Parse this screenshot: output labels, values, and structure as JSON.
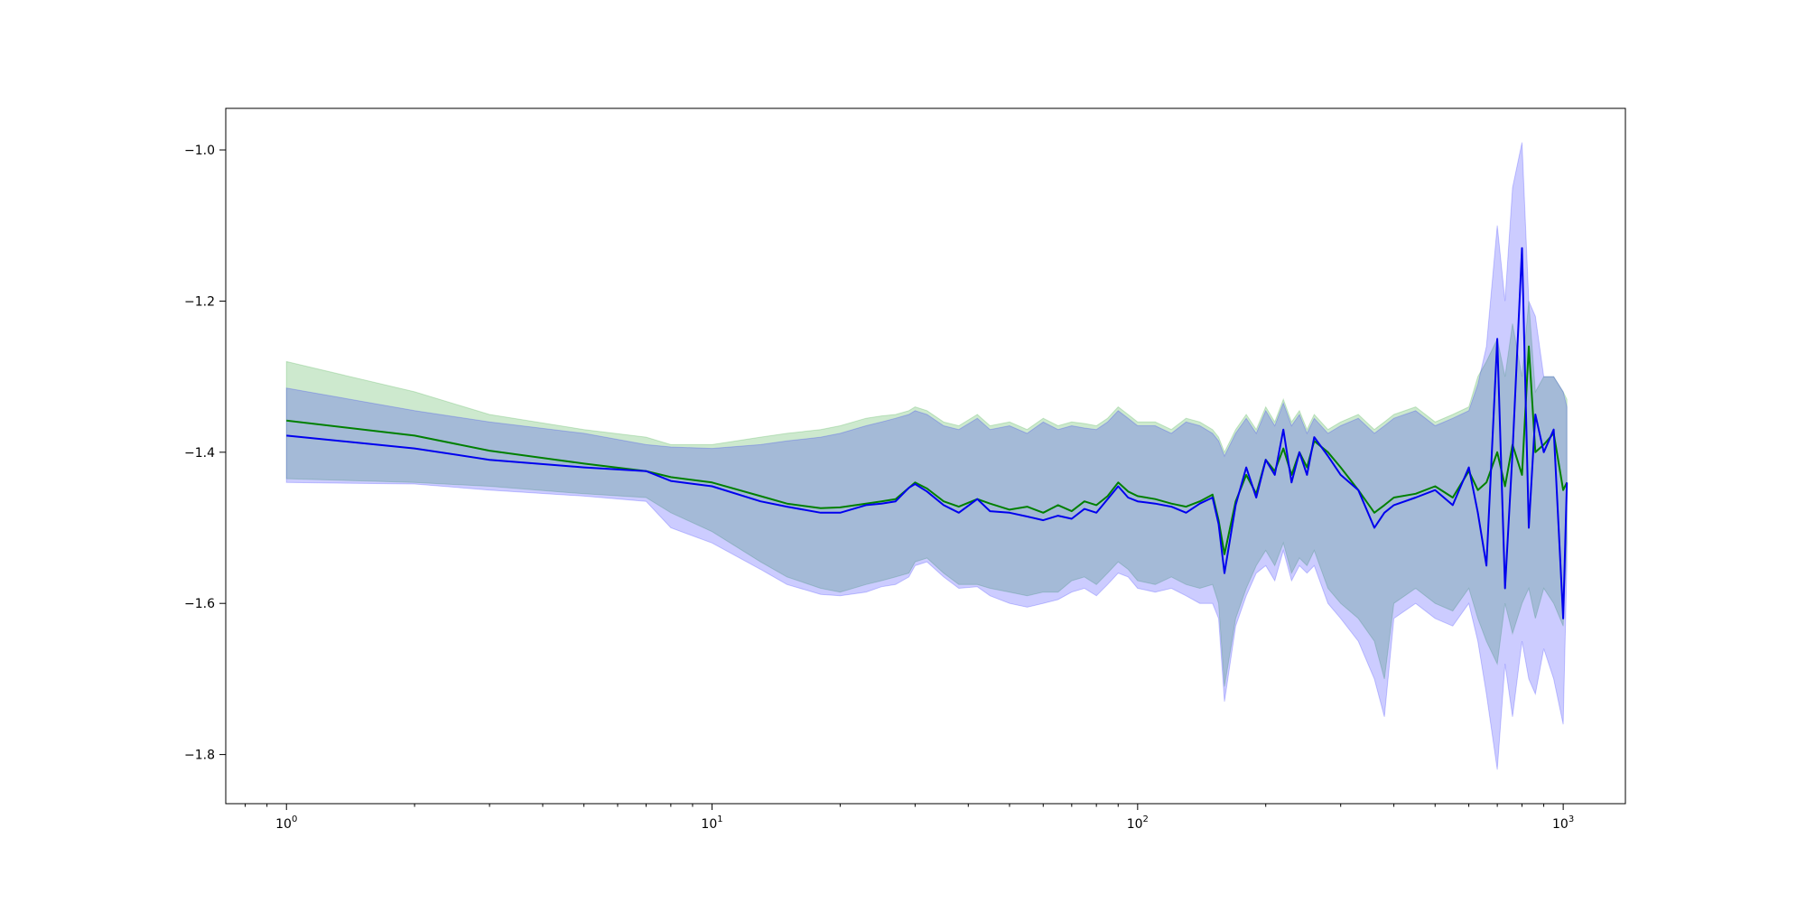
{
  "chart_data": {
    "type": "line",
    "title": "",
    "xlabel": "",
    "ylabel": "",
    "x_scale": "log",
    "xlim": [
      0.72,
      1400
    ],
    "ylim": [
      -1.865,
      -0.945
    ],
    "grid": false,
    "legend": "none",
    "x_ticks": [
      {
        "value": 1,
        "base": "10",
        "exp": "0"
      },
      {
        "value": 10,
        "base": "10",
        "exp": "1"
      },
      {
        "value": 100,
        "base": "10",
        "exp": "2"
      },
      {
        "value": 1000,
        "base": "10",
        "exp": "3"
      }
    ],
    "y_ticks": [
      {
        "value": -1.8,
        "label": "−1.8"
      },
      {
        "value": -1.6,
        "label": "−1.6"
      },
      {
        "value": -1.4,
        "label": "−1.4"
      },
      {
        "value": -1.2,
        "label": "−1.2"
      },
      {
        "value": -1.0,
        "label": "−1.0"
      }
    ],
    "series": [
      {
        "color": "#008000",
        "band_color": "#4caf50",
        "band_opacity": 0.28,
        "x": [
          1,
          2,
          3,
          5,
          7,
          8,
          10,
          13,
          15,
          18,
          20,
          23,
          25,
          27,
          29,
          30,
          32,
          35,
          38,
          42,
          45,
          50,
          55,
          60,
          65,
          70,
          75,
          80,
          85,
          90,
          95,
          100,
          110,
          120,
          130,
          140,
          150,
          155,
          160,
          170,
          180,
          190,
          200,
          210,
          220,
          230,
          240,
          250,
          260,
          280,
          300,
          330,
          360,
          380,
          400,
          450,
          500,
          550,
          600,
          630,
          660,
          700,
          730,
          760,
          800,
          830,
          860,
          900,
          950,
          1000,
          1020
        ],
        "y": [
          -1.358,
          -1.378,
          -1.398,
          -1.415,
          -1.425,
          -1.433,
          -1.44,
          -1.458,
          -1.468,
          -1.474,
          -1.473,
          -1.468,
          -1.465,
          -1.462,
          -1.447,
          -1.44,
          -1.448,
          -1.465,
          -1.472,
          -1.462,
          -1.468,
          -1.476,
          -1.472,
          -1.48,
          -1.47,
          -1.478,
          -1.465,
          -1.47,
          -1.458,
          -1.44,
          -1.452,
          -1.458,
          -1.462,
          -1.468,
          -1.472,
          -1.465,
          -1.456,
          -1.49,
          -1.535,
          -1.465,
          -1.43,
          -1.455,
          -1.41,
          -1.425,
          -1.395,
          -1.43,
          -1.4,
          -1.42,
          -1.385,
          -1.4,
          -1.42,
          -1.45,
          -1.48,
          -1.47,
          -1.46,
          -1.455,
          -1.445,
          -1.46,
          -1.425,
          -1.45,
          -1.44,
          -1.4,
          -1.445,
          -1.39,
          -1.43,
          -1.26,
          -1.4,
          -1.39,
          -1.375,
          -1.45,
          -1.44
        ],
        "lower": [
          -1.435,
          -1.44,
          -1.445,
          -1.455,
          -1.46,
          -1.48,
          -1.505,
          -1.545,
          -1.565,
          -1.58,
          -1.585,
          -1.575,
          -1.57,
          -1.565,
          -1.56,
          -1.545,
          -1.54,
          -1.56,
          -1.575,
          -1.575,
          -1.58,
          -1.585,
          -1.59,
          -1.585,
          -1.585,
          -1.57,
          -1.565,
          -1.575,
          -1.56,
          -1.545,
          -1.555,
          -1.57,
          -1.575,
          -1.565,
          -1.575,
          -1.58,
          -1.575,
          -1.6,
          -1.71,
          -1.62,
          -1.58,
          -1.55,
          -1.53,
          -1.55,
          -1.52,
          -1.56,
          -1.54,
          -1.55,
          -1.53,
          -1.58,
          -1.6,
          -1.62,
          -1.65,
          -1.7,
          -1.6,
          -1.58,
          -1.6,
          -1.61,
          -1.58,
          -1.62,
          -1.65,
          -1.68,
          -1.6,
          -1.64,
          -1.6,
          -1.58,
          -1.62,
          -1.58,
          -1.6,
          -1.63,
          -1.52
        ],
        "upper": [
          -1.28,
          -1.32,
          -1.35,
          -1.37,
          -1.38,
          -1.39,
          -1.39,
          -1.38,
          -1.375,
          -1.37,
          -1.365,
          -1.355,
          -1.352,
          -1.35,
          -1.345,
          -1.34,
          -1.345,
          -1.36,
          -1.365,
          -1.35,
          -1.365,
          -1.36,
          -1.37,
          -1.355,
          -1.365,
          -1.36,
          -1.362,
          -1.365,
          -1.355,
          -1.34,
          -1.35,
          -1.36,
          -1.36,
          -1.37,
          -1.355,
          -1.36,
          -1.37,
          -1.38,
          -1.4,
          -1.37,
          -1.35,
          -1.37,
          -1.34,
          -1.36,
          -1.33,
          -1.36,
          -1.345,
          -1.37,
          -1.35,
          -1.37,
          -1.36,
          -1.35,
          -1.37,
          -1.36,
          -1.35,
          -1.34,
          -1.36,
          -1.35,
          -1.34,
          -1.3,
          -1.28,
          -1.25,
          -1.3,
          -1.23,
          -1.3,
          -1.2,
          -1.32,
          -1.3,
          -1.3,
          -1.32,
          -1.33
        ]
      },
      {
        "color": "#0000ee",
        "band_color": "#0000ff",
        "band_opacity": 0.2,
        "x": [
          1,
          2,
          3,
          5,
          7,
          8,
          10,
          13,
          15,
          18,
          20,
          23,
          25,
          27,
          29,
          30,
          32,
          35,
          38,
          42,
          45,
          50,
          55,
          60,
          65,
          70,
          75,
          80,
          85,
          90,
          95,
          100,
          110,
          120,
          130,
          140,
          150,
          155,
          160,
          170,
          180,
          190,
          200,
          210,
          220,
          230,
          240,
          250,
          260,
          280,
          300,
          330,
          360,
          380,
          400,
          450,
          500,
          550,
          600,
          630,
          660,
          700,
          730,
          760,
          800,
          830,
          860,
          900,
          950,
          1000,
          1020
        ],
        "y": [
          -1.378,
          -1.395,
          -1.41,
          -1.42,
          -1.425,
          -1.438,
          -1.445,
          -1.465,
          -1.472,
          -1.48,
          -1.48,
          -1.47,
          -1.468,
          -1.465,
          -1.447,
          -1.442,
          -1.452,
          -1.47,
          -1.48,
          -1.462,
          -1.478,
          -1.48,
          -1.485,
          -1.49,
          -1.484,
          -1.488,
          -1.475,
          -1.48,
          -1.462,
          -1.445,
          -1.46,
          -1.465,
          -1.468,
          -1.472,
          -1.48,
          -1.468,
          -1.46,
          -1.495,
          -1.56,
          -1.47,
          -1.42,
          -1.46,
          -1.41,
          -1.43,
          -1.37,
          -1.44,
          -1.4,
          -1.43,
          -1.38,
          -1.405,
          -1.43,
          -1.45,
          -1.5,
          -1.48,
          -1.47,
          -1.46,
          -1.45,
          -1.47,
          -1.42,
          -1.48,
          -1.55,
          -1.25,
          -1.58,
          -1.4,
          -1.13,
          -1.5,
          -1.35,
          -1.4,
          -1.37,
          -1.62,
          -1.44
        ],
        "lower": [
          -1.44,
          -1.442,
          -1.45,
          -1.458,
          -1.465,
          -1.5,
          -1.52,
          -1.555,
          -1.575,
          -1.588,
          -1.59,
          -1.585,
          -1.578,
          -1.575,
          -1.565,
          -1.55,
          -1.545,
          -1.565,
          -1.58,
          -1.578,
          -1.59,
          -1.6,
          -1.605,
          -1.6,
          -1.595,
          -1.585,
          -1.58,
          -1.59,
          -1.575,
          -1.56,
          -1.565,
          -1.58,
          -1.585,
          -1.58,
          -1.59,
          -1.6,
          -1.6,
          -1.62,
          -1.73,
          -1.63,
          -1.59,
          -1.56,
          -1.55,
          -1.57,
          -1.53,
          -1.57,
          -1.55,
          -1.56,
          -1.55,
          -1.6,
          -1.62,
          -1.65,
          -1.7,
          -1.75,
          -1.62,
          -1.6,
          -1.62,
          -1.63,
          -1.6,
          -1.65,
          -1.72,
          -1.82,
          -1.68,
          -1.75,
          -1.65,
          -1.7,
          -1.72,
          -1.66,
          -1.7,
          -1.76,
          -1.55
        ],
        "upper": [
          -1.315,
          -1.345,
          -1.36,
          -1.375,
          -1.39,
          -1.393,
          -1.395,
          -1.39,
          -1.385,
          -1.38,
          -1.375,
          -1.365,
          -1.36,
          -1.355,
          -1.35,
          -1.345,
          -1.35,
          -1.365,
          -1.37,
          -1.355,
          -1.37,
          -1.365,
          -1.375,
          -1.36,
          -1.37,
          -1.365,
          -1.368,
          -1.37,
          -1.36,
          -1.345,
          -1.355,
          -1.365,
          -1.365,
          -1.375,
          -1.36,
          -1.365,
          -1.375,
          -1.385,
          -1.405,
          -1.375,
          -1.355,
          -1.375,
          -1.345,
          -1.365,
          -1.335,
          -1.365,
          -1.35,
          -1.375,
          -1.355,
          -1.375,
          -1.365,
          -1.355,
          -1.375,
          -1.365,
          -1.355,
          -1.345,
          -1.365,
          -1.355,
          -1.345,
          -1.31,
          -1.26,
          -1.1,
          -1.2,
          -1.05,
          -0.99,
          -1.2,
          -1.22,
          -1.3,
          -1.3,
          -1.32,
          -1.34
        ]
      }
    ]
  }
}
